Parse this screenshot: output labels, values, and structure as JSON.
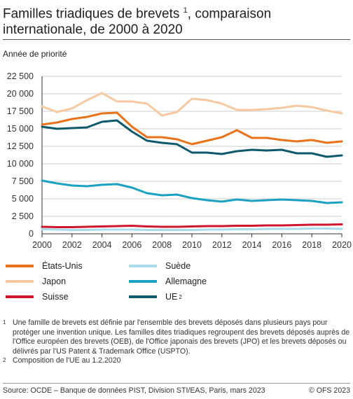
{
  "title_line1": "Familles triadiques de brevets",
  "title_footnote": "1",
  "title_line1_rest": ", comparaison",
  "title_line2": "internationale, de 2000 à 2020",
  "subtitle": "Année de priorité",
  "chart_data": {
    "type": "line",
    "x": [
      2000,
      2001,
      2002,
      2003,
      2004,
      2005,
      2006,
      2007,
      2008,
      2009,
      2010,
      2011,
      2012,
      2013,
      2014,
      2015,
      2016,
      2017,
      2018,
      2019,
      2020
    ],
    "xticks": [
      "2000",
      "2002",
      "2004",
      "2006",
      "2008",
      "2010",
      "2012",
      "2014",
      "2016",
      "2018",
      "2020"
    ],
    "yticks": [
      "0",
      "2 500",
      "5 000",
      "7 500",
      "10 000",
      "12 500",
      "15 000",
      "17 500",
      "20 000",
      "22 500"
    ],
    "ylim": [
      0,
      22500
    ],
    "xlim": [
      2000,
      2020
    ],
    "grid": true,
    "legend_position": "bottom",
    "series": [
      {
        "name": "États-Unis",
        "color": "#e8731a",
        "values": [
          15600,
          15900,
          16400,
          16700,
          17200,
          17300,
          15300,
          13800,
          13800,
          13500,
          12800,
          13300,
          13800,
          14800,
          13700,
          13700,
          13400,
          13200,
          13400,
          13000,
          13200
        ]
      },
      {
        "name": "Japon",
        "color": "#f8c9a0",
        "values": [
          18200,
          17400,
          17900,
          19100,
          20100,
          18900,
          18900,
          18600,
          16900,
          17400,
          19300,
          19100,
          18600,
          17700,
          17700,
          17800,
          18000,
          18300,
          18100,
          17600,
          17200
        ]
      },
      {
        "name": "Suisse",
        "color": "#d0162c",
        "values": [
          1000,
          950,
          950,
          1000,
          1050,
          1100,
          1150,
          1050,
          1000,
          1000,
          1050,
          1100,
          1100,
          1150,
          1150,
          1200,
          1200,
          1250,
          1300,
          1300,
          1350
        ]
      },
      {
        "name": "Suède",
        "color": "#a9dcea",
        "values": [
          650,
          600,
          550,
          550,
          600,
          600,
          600,
          550,
          550,
          550,
          550,
          600,
          600,
          650,
          650,
          700,
          700,
          700,
          750,
          750,
          700
        ]
      },
      {
        "name": "Allemagne",
        "color": "#1ba1c1",
        "values": [
          7600,
          7200,
          6900,
          6800,
          7000,
          7100,
          6600,
          5800,
          5500,
          5600,
          5100,
          4800,
          4600,
          4900,
          4700,
          4800,
          4900,
          4800,
          4700,
          4400,
          4500
        ]
      },
      {
        "name": "UE",
        "name_footnote": "2",
        "color": "#0e5a6b",
        "values": [
          15300,
          15000,
          15100,
          15200,
          16000,
          16200,
          14600,
          13300,
          13000,
          12800,
          11600,
          11600,
          11400,
          11800,
          12000,
          11900,
          12000,
          11500,
          11500,
          11000,
          11200
        ]
      }
    ]
  },
  "legend": [
    {
      "label": "États-Unis",
      "footnote": "",
      "color": "#e8731a"
    },
    {
      "label": "Suède",
      "footnote": "",
      "color": "#a9dcea"
    },
    {
      "label": "Japon",
      "footnote": "",
      "color": "#f8c9a0"
    },
    {
      "label": "Allemagne",
      "footnote": "",
      "color": "#1ba1c1"
    },
    {
      "label": "Suisse",
      "footnote": "",
      "color": "#d0162c"
    },
    {
      "label": "UE",
      "footnote": "2",
      "color": "#0e5a6b"
    }
  ],
  "notes": [
    {
      "mark": "1",
      "text": "Une famille de brevets est définie par l'ensemble des brevets déposés dans plusieurs pays pour protéger une invention unique. Les familles dites triadiques regroupent des brevets déposés auprès de l'Office européen des brevets (OEB), de l'Office japonais des brevets (JPO) et les brevets déposés ou délivrés par l'US Patent & Trademark Office (USPTO)."
    },
    {
      "mark": "2",
      "text": "Composition de l'UE au 1.2.2020"
    }
  ],
  "source": "Source: OCDE – Banque de données PIST, Division STI/EAS, Paris, mars 2023",
  "copyright": "© OFS 2023"
}
